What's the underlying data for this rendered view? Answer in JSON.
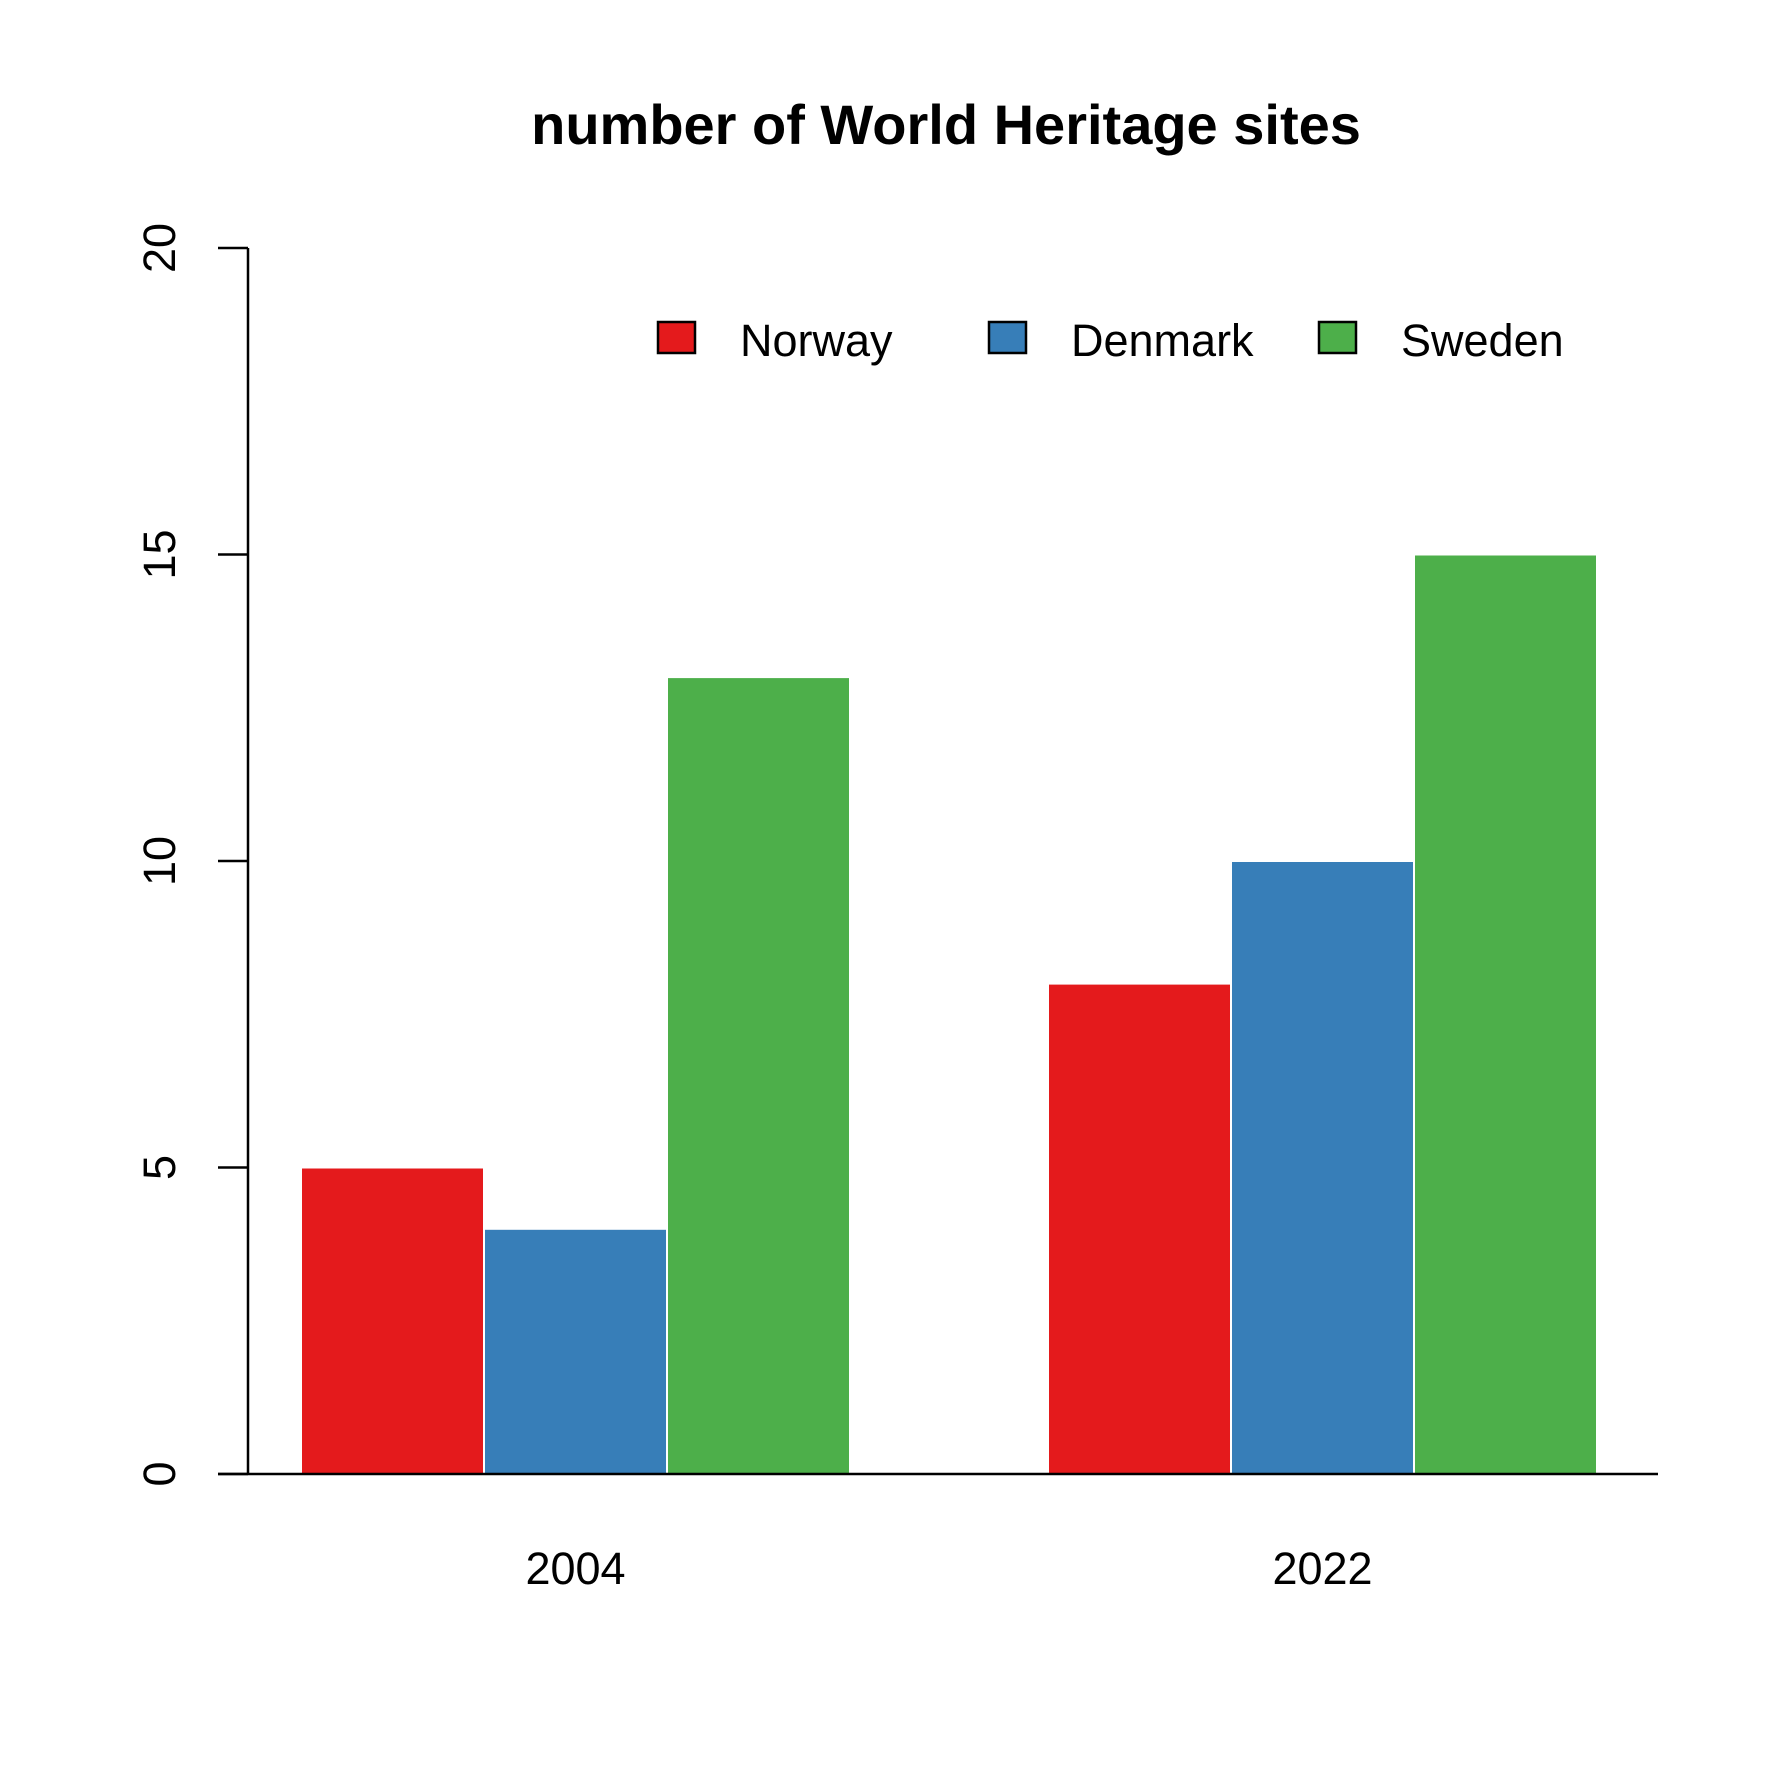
{
  "chart_data": {
    "type": "bar",
    "title": "number of World Heritage sites",
    "xlabel": "",
    "ylabel": "",
    "categories": [
      "2004",
      "2022"
    ],
    "series": [
      {
        "name": "Norway",
        "color": "#E41A1C",
        "values": [
          5,
          8
        ]
      },
      {
        "name": "Denmark",
        "color": "#377EB8",
        "values": [
          4,
          10
        ]
      },
      {
        "name": "Sweden",
        "color": "#4DAF4A",
        "values": [
          13,
          15
        ]
      }
    ],
    "ylim": [
      0,
      20
    ],
    "yticks": [
      0,
      5,
      10,
      15,
      20
    ],
    "grid": false,
    "legend": "top-right",
    "bar_border_color": "#FFFFFF"
  }
}
